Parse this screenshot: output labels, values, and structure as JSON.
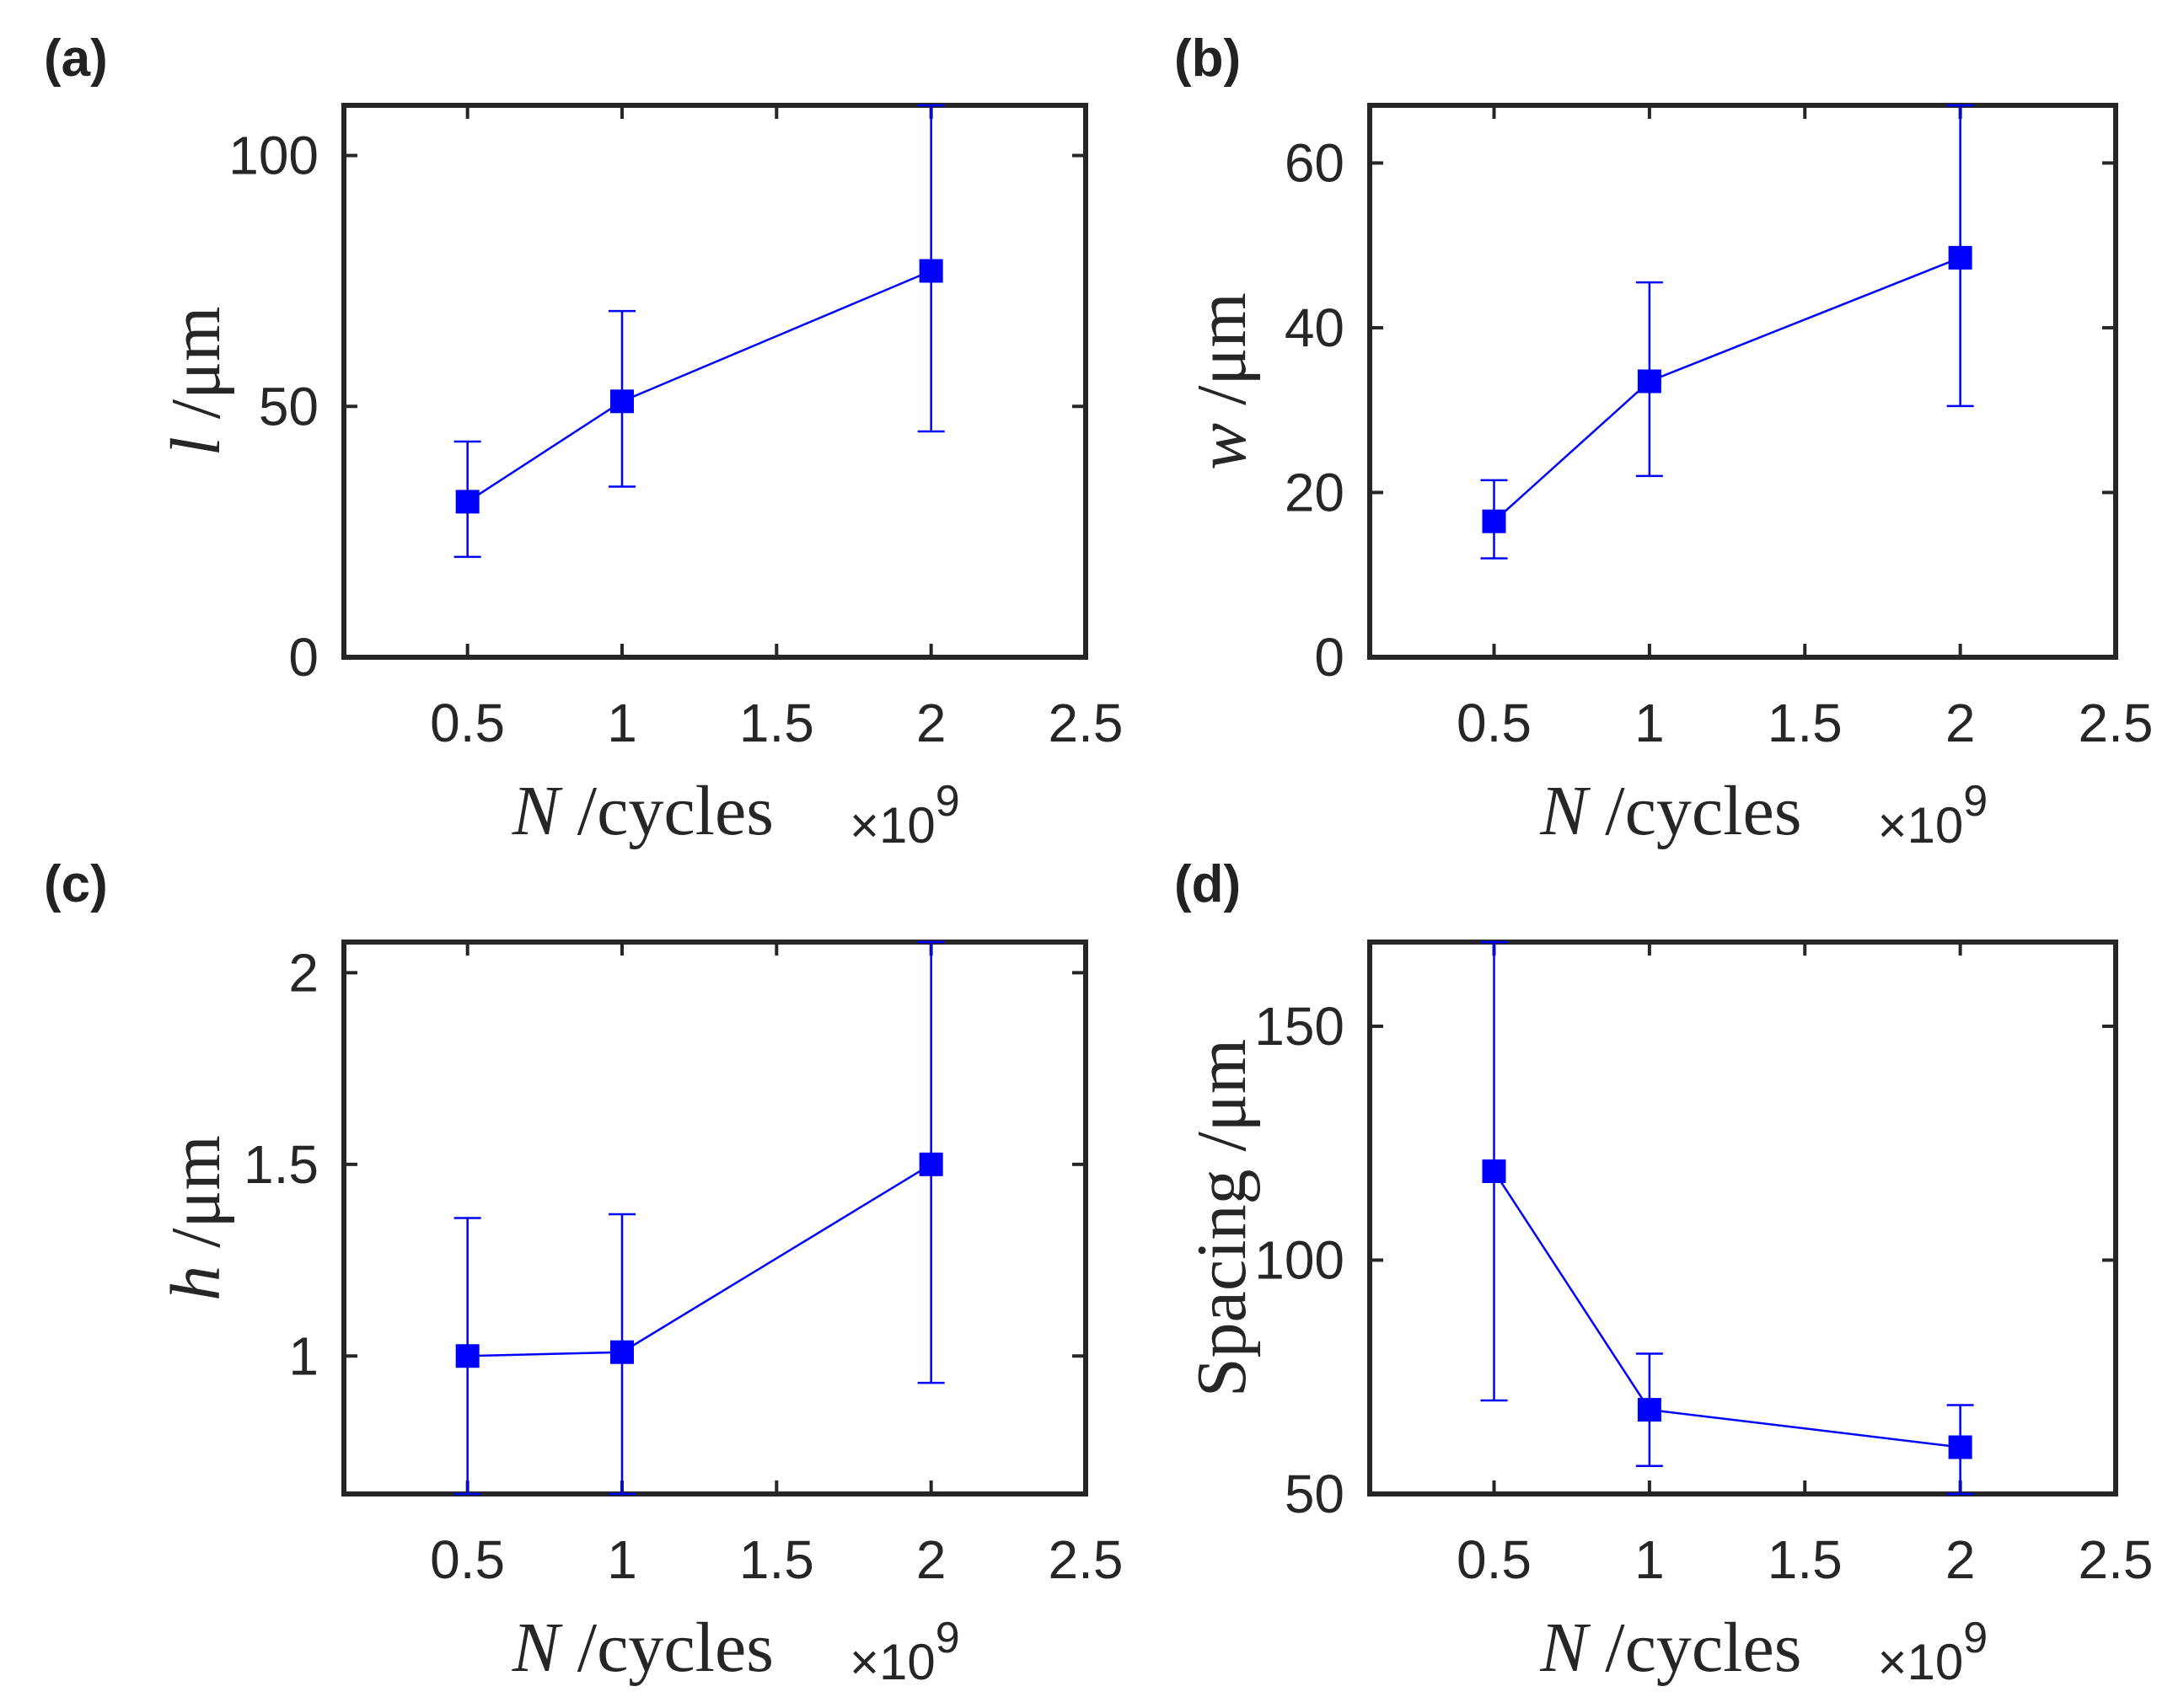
{
  "chart_data": [
    {
      "type": "line",
      "panel_label": "(a)",
      "x": [
        0.5,
        1,
        2
      ],
      "values": [
        31,
        51,
        77
      ],
      "errors_low": [
        20,
        34,
        45
      ],
      "errors_high": [
        43,
        69,
        110
      ],
      "xlim": [
        0.1,
        2.5
      ],
      "ylim": [
        0,
        110
      ],
      "xticks": [
        "0.5",
        "1",
        "1.5",
        "2",
        "2.5"
      ],
      "xtick_values": [
        0.5,
        1,
        1.5,
        2,
        2.5
      ],
      "yticks": [
        "0",
        "50",
        "100"
      ],
      "ytick_values": [
        0,
        50,
        100
      ],
      "ylabel_var": "l",
      "ylabel_unit": " /μm",
      "xlabel_var": "N",
      "xlabel_unit": " /cycles",
      "x_multiplier": "×10",
      "x_multiplier_exp": "9",
      "color": "#0000ff"
    },
    {
      "type": "line",
      "panel_label": "(b)",
      "x": [
        0.5,
        1,
        2
      ],
      "values": [
        16.5,
        33.5,
        48.5
      ],
      "errors_low": [
        12,
        22,
        30.5
      ],
      "errors_high": [
        21.5,
        45.5,
        67
      ],
      "xlim": [
        0.1,
        2.5
      ],
      "ylim": [
        0,
        67
      ],
      "xticks": [
        "0.5",
        "1",
        "1.5",
        "2",
        "2.5"
      ],
      "xtick_values": [
        0.5,
        1,
        1.5,
        2,
        2.5
      ],
      "yticks": [
        "0",
        "20",
        "40",
        "60"
      ],
      "ytick_values": [
        0,
        20,
        40,
        60
      ],
      "ylabel_var": "w",
      "ylabel_unit": " /μm",
      "xlabel_var": "N",
      "xlabel_unit": " /cycles",
      "x_multiplier": "×10",
      "x_multiplier_exp": "9",
      "color": "#0000ff"
    },
    {
      "type": "line",
      "panel_label": "(c)",
      "x": [
        0.5,
        1,
        2
      ],
      "values": [
        1.0,
        1.01,
        1.5
      ],
      "errors_low": [
        0.64,
        0.64,
        0.93
      ],
      "errors_high": [
        1.36,
        1.37,
        2.08
      ],
      "xlim": [
        0.1,
        2.5
      ],
      "ylim": [
        0.64,
        2.08
      ],
      "xticks": [
        "0.5",
        "1",
        "1.5",
        "2",
        "2.5"
      ],
      "xtick_values": [
        0.5,
        1,
        1.5,
        2,
        2.5
      ],
      "yticks": [
        "1",
        "1.5",
        "2"
      ],
      "ytick_values": [
        1,
        1.5,
        2
      ],
      "ylabel_var": "h",
      "ylabel_unit": " /μm",
      "xlabel_var": "N",
      "xlabel_unit": " /cycles",
      "x_multiplier": "×10",
      "x_multiplier_exp": "9",
      "color": "#0000ff"
    },
    {
      "type": "line",
      "panel_label": "(d)",
      "x": [
        0.5,
        1,
        2
      ],
      "values": [
        119,
        68,
        60
      ],
      "errors_low": [
        70,
        56,
        50
      ],
      "errors_high": [
        168,
        80,
        69
      ],
      "xlim": [
        0.1,
        2.5
      ],
      "ylim": [
        50,
        168
      ],
      "xticks": [
        "0.5",
        "1",
        "1.5",
        "2",
        "2.5"
      ],
      "xtick_values": [
        0.5,
        1,
        1.5,
        2,
        2.5
      ],
      "yticks": [
        "50",
        "100",
        "150"
      ],
      "ytick_values": [
        50,
        100,
        150
      ],
      "ylabel_var": "",
      "ylabel_unit": "Spacing /μm",
      "xlabel_var": "N",
      "xlabel_unit": " /cycles",
      "x_multiplier": "×10",
      "x_multiplier_exp": "9",
      "color": "#0000ff"
    }
  ]
}
